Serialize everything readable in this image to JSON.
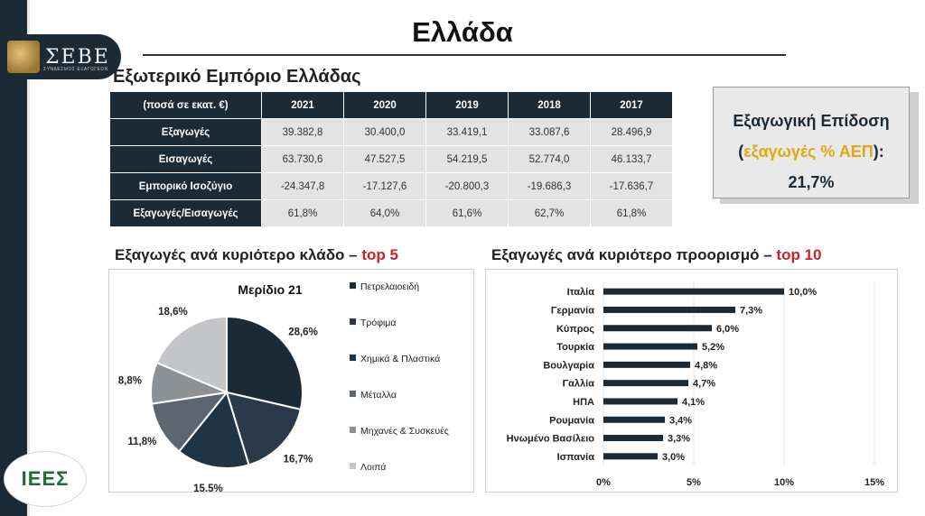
{
  "header": {
    "title": "Ελλάδα",
    "logo_seve": "ΣΕΒΕ",
    "logo_seve_sub": "ΣΥΝΔΕΣΜΟΣ ΕΞΑΓΩΓΕΩΝ",
    "logo_iees": "ΙΕΕΣ"
  },
  "trade": {
    "title": "Εξωτερικό Εμπόριο Ελλάδας",
    "unit": "(ποσά σε εκατ. €)",
    "years": [
      "2021",
      "2020",
      "2019",
      "2018",
      "2017"
    ],
    "rows": [
      {
        "label": "Εξαγωγές",
        "values": [
          "39.382,8",
          "30.400,0",
          "33.419,1",
          "33.087,6",
          "28.496,9"
        ]
      },
      {
        "label": "Εισαγωγές",
        "values": [
          "63.730,6",
          "47.527,5",
          "54.219,5",
          "52.774,0",
          "46.133,7"
        ]
      },
      {
        "label": "Εμπορικό Ισοζύγιο",
        "values": [
          "-24.347,8",
          "-17.127,6",
          "-20.800,3",
          "-19.686,3",
          "-17.636,7"
        ]
      },
      {
        "label": "Εξαγωγές/Εισαγωγές",
        "values": [
          "61,8%",
          "64,0%",
          "61,6%",
          "62,7%",
          "61,8%"
        ]
      }
    ]
  },
  "kpi": {
    "line1": "Εξαγωγική Επίδοση",
    "paren_open": "(",
    "highlight": "εξαγωγές % ΑΕΠ",
    "paren_close": "):",
    "value": "21,7%"
  },
  "colors": {
    "navy": "#1c2a36",
    "pie": [
      "#1c2a36",
      "#2a3a4a",
      "#1f3444",
      "#5c6670",
      "#8c9196",
      "#c3c5c8"
    ],
    "bar": "#1c2a36",
    "highlight_red": "#d0202a",
    "highlight_gold": "#e0a815"
  },
  "chart_data": [
    {
      "type": "pie",
      "title": "Εξαγωγές ανά κυριότερο κλάδο – ",
      "title_highlight": "top 5",
      "subtitle": "Μερίδιο 21",
      "legend_position": "right",
      "slices": [
        {
          "name": "Πετρελαιοειδή",
          "value": 28.6,
          "label": "28,6%"
        },
        {
          "name": "Τρόφιμα",
          "value": 16.7,
          "label": "16,7%"
        },
        {
          "name": "Χημικά & Πλαστικά",
          "value": 15.5,
          "label": "15,5%"
        },
        {
          "name": "Μέταλλα",
          "value": 11.8,
          "label": "11,8%"
        },
        {
          "name": "Μηχανές & Συσκευές",
          "value": 8.8,
          "label": "8,8%"
        },
        {
          "name": "Λοιπά",
          "value": 18.6,
          "label": "18,6%"
        }
      ]
    },
    {
      "type": "bar",
      "orientation": "horizontal",
      "title": "Εξαγωγές ανά κυριότερο προορισμό – ",
      "title_highlight": "top 10",
      "categories": [
        "Ιταλία",
        "Γερμανία",
        "Κύπρος",
        "Τουρκία",
        "Βουλγαρία",
        "Γαλλία",
        "ΗΠΑ",
        "Ρουμανία",
        "Ηνωμένο Βασίλειο",
        "Ισπανία"
      ],
      "values": [
        10.0,
        7.3,
        6.0,
        5.2,
        4.8,
        4.7,
        4.1,
        3.4,
        3.3,
        3.0
      ],
      "value_labels": [
        "10,0%",
        "7,3%",
        "6,0%",
        "5,2%",
        "4,8%",
        "4,7%",
        "4,1%",
        "3,4%",
        "3,3%",
        "3,0%"
      ],
      "xlim": [
        0,
        15
      ],
      "xticks": [
        0,
        5,
        10,
        15
      ],
      "xtick_labels": [
        "0%",
        "5%",
        "10%",
        "15%"
      ],
      "grid": true
    }
  ]
}
